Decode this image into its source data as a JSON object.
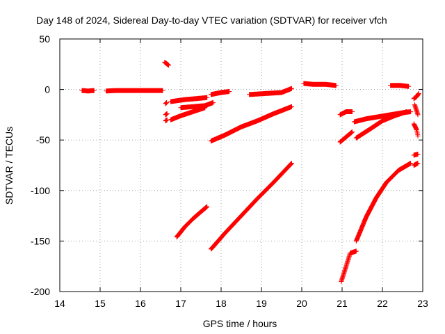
{
  "chart_data": {
    "type": "scatter",
    "title": "Day 148 of 2024, Sidereal Day-to-day VTEC variation (SDTVAR) for receiver vfch",
    "xlabel": "GPS time / hours",
    "ylabel": "SDTVAR / TECUs",
    "xlim": [
      14,
      23
    ],
    "ylim": [
      -200,
      50
    ],
    "xticks": [
      "14",
      "15",
      "16",
      "17",
      "18",
      "19",
      "20",
      "21",
      "22",
      "23"
    ],
    "yticks": [
      "50",
      "0",
      "-50",
      "-100",
      "-150",
      "-200"
    ],
    "grid": true,
    "marker": "+",
    "marker_color": "#ff0000",
    "series": [
      {
        "x": [
          14.55,
          14.7,
          14.85
        ],
        "y": [
          -1,
          -1.5,
          -1
        ]
      },
      {
        "x": [
          15.15,
          15.4,
          15.7,
          16.0,
          16.3,
          16.55
        ],
        "y": [
          -1.5,
          -1,
          -1,
          -1,
          -1,
          -1
        ]
      },
      {
        "x": [
          16.6,
          16.7
        ],
        "y": [
          27,
          24
        ]
      },
      {
        "x": [
          16.62,
          16.65
        ],
        "y": [
          -14,
          -13
        ]
      },
      {
        "x": [
          16.62,
          16.66
        ],
        "y": [
          -25,
          -24
        ]
      },
      {
        "x": [
          16.62,
          16.66
        ],
        "y": [
          -31,
          -30
        ]
      },
      {
        "x": [
          16.75,
          17.1,
          17.4,
          17.65
        ],
        "y": [
          -12,
          -10,
          -9,
          -8
        ]
      },
      {
        "x": [
          17.75,
          18.0,
          18.2
        ],
        "y": [
          -5,
          -3,
          -2
        ]
      },
      {
        "x": [
          17.0,
          17.3,
          17.6,
          17.8
        ],
        "y": [
          -18,
          -17,
          -16,
          -13
        ]
      },
      {
        "x": [
          16.75,
          17.0,
          17.3,
          17.6
        ],
        "y": [
          -30,
          -26,
          -22,
          -18
        ]
      },
      {
        "x": [
          17.75,
          18.1,
          18.5,
          18.9,
          19.3,
          19.75
        ],
        "y": [
          -51,
          -45,
          -37,
          -31,
          -24,
          -17
        ]
      },
      {
        "x": [
          18.7,
          19.1,
          19.5,
          19.75
        ],
        "y": [
          -5,
          -4,
          -3,
          1
        ]
      },
      {
        "x": [
          16.9,
          17.1,
          17.3,
          17.5,
          17.65
        ],
        "y": [
          -146,
          -136,
          -128,
          -121,
          -116
        ]
      },
      {
        "x": [
          17.75,
          18.1,
          18.5,
          18.9,
          19.3,
          19.75
        ],
        "y": [
          -158,
          -142,
          -125,
          -108,
          -92,
          -73
        ]
      },
      {
        "x": [
          20.05,
          20.3,
          20.6,
          20.85
        ],
        "y": [
          6,
          5,
          5,
          4
        ]
      },
      {
        "x": [
          20.95,
          21.1,
          21.25
        ],
        "y": [
          -25,
          -22,
          -22
        ]
      },
      {
        "x": [
          20.95,
          21.1,
          21.25
        ],
        "y": [
          -52,
          -47,
          -42
        ]
      },
      {
        "x": [
          20.98,
          21.1,
          21.2,
          21.35
        ],
        "y": [
          -190,
          -175,
          -162,
          -160
        ]
      },
      {
        "x": [
          21.3,
          21.6,
          21.9,
          22.2,
          22.5,
          22.7
        ],
        "y": [
          -32,
          -29,
          -27,
          -25,
          -23,
          -22
        ]
      },
      {
        "x": [
          21.35,
          21.7,
          22.0,
          22.3,
          22.6
        ],
        "y": [
          -48,
          -39,
          -31,
          -26,
          -22
        ]
      },
      {
        "x": [
          21.35,
          21.6,
          21.85,
          22.1,
          22.4,
          22.7
        ],
        "y": [
          -150,
          -126,
          -107,
          -92,
          -80,
          -73
        ]
      },
      {
        "x": [
          22.2,
          22.45,
          22.65
        ],
        "y": [
          4,
          4,
          3
        ]
      },
      {
        "x": [
          22.78,
          22.85,
          22.9
        ],
        "y": [
          -9,
          -7,
          -4
        ]
      },
      {
        "x": [
          22.8,
          22.88
        ],
        "y": [
          -15,
          -25
        ]
      },
      {
        "x": [
          22.78,
          22.85,
          22.88
        ],
        "y": [
          -34,
          -40,
          -46
        ]
      },
      {
        "x": [
          22.78,
          22.88
        ],
        "y": [
          -65,
          -64
        ]
      },
      {
        "x": [
          22.78,
          22.88
        ],
        "y": [
          -75,
          -73
        ]
      }
    ]
  }
}
